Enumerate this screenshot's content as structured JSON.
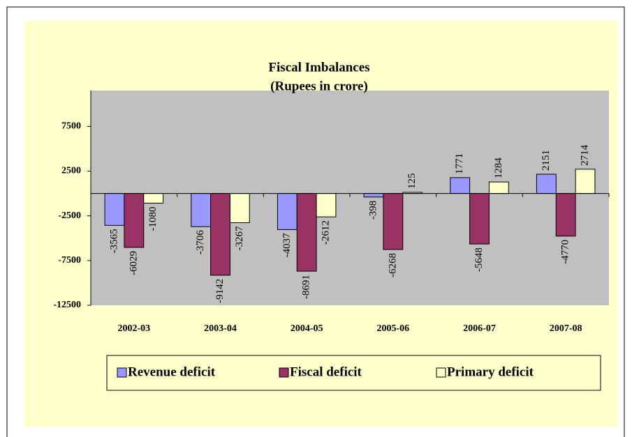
{
  "chart_data": {
    "type": "bar",
    "title": "Fiscal Imbalances",
    "subtitle": "(Rupees in crore)",
    "categories": [
      "2002-03",
      "2003-04",
      "2004-05",
      "2005-06",
      "2006-07",
      "2007-08"
    ],
    "series": [
      {
        "name": "Revenue deficit",
        "color": "#9999ff",
        "values": [
          -3565,
          -3706,
          -4037,
          -398,
          1771,
          2151
        ]
      },
      {
        "name": "Fiscal deficit",
        "color": "#993366",
        "values": [
          -6029,
          -9142,
          -8691,
          -6268,
          -5648,
          -4770
        ]
      },
      {
        "name": "Primary deficit",
        "color": "#ffffcc",
        "values": [
          -1080,
          -3267,
          -2612,
          125,
          1284,
          2714
        ]
      }
    ],
    "ylim": [
      -12500,
      11500
    ],
    "yticks": [
      -12500,
      -7500,
      -2500,
      2500,
      7500
    ],
    "grid": false,
    "legend": "bottom"
  }
}
